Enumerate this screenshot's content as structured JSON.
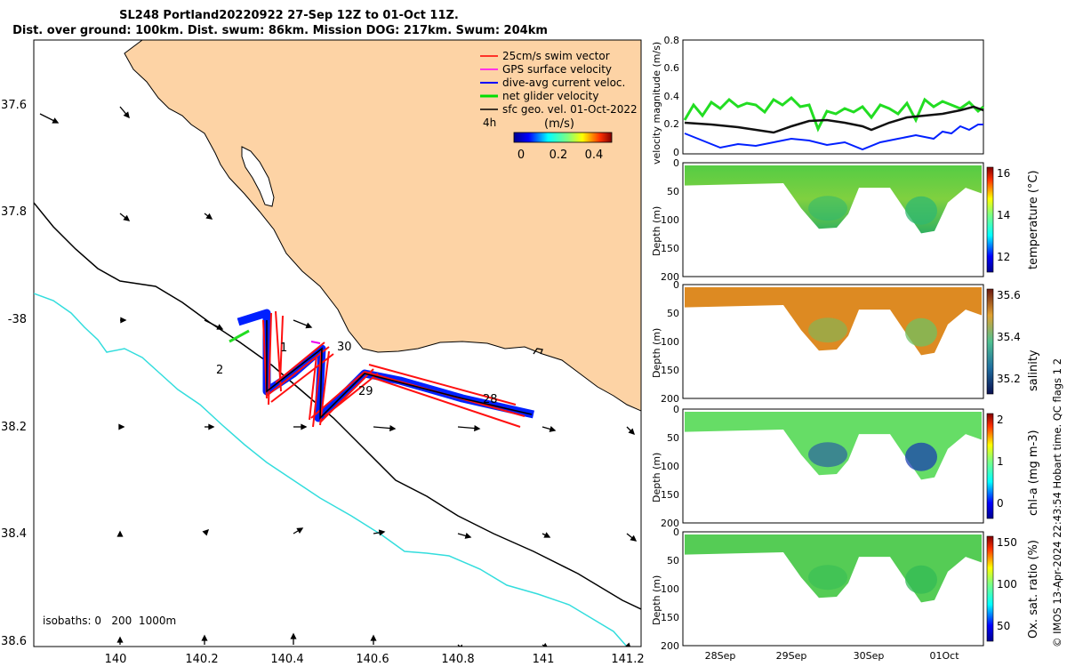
{
  "title": {
    "line1": "SL248 Portland20220922 27-Sep 12Z to 01-Oct 11Z.",
    "line2": "Dist. over ground: 100km. Dist. swum: 86km. Mission DOG: 217km. Swum: 204km"
  },
  "map": {
    "lon_ticks": [
      "140",
      "140.2",
      "140.4",
      "140.6",
      "140.8",
      "141",
      "141.2"
    ],
    "lat_ticks": [
      "37.6",
      "37.8",
      "-38",
      "38.2",
      "38.4",
      "38.6"
    ],
    "legend": [
      {
        "label": "25cm/s swim vector",
        "color": "#ff0000"
      },
      {
        "label": "GPS surface velocity",
        "color": "#ff00ff"
      },
      {
        "label": "dive-avg current veloc.",
        "color": "#0000ff"
      },
      {
        "label": "net glider velocity",
        "color": "#00dd00"
      },
      {
        "label": "sfc geo. vel. 01-Oct-2022",
        "color": "#000000"
      }
    ],
    "scale_label": "4h",
    "colorbar_unit": "(m/s)",
    "colorbar_ticks": [
      "0",
      "0.2",
      "0.4"
    ],
    "track_labels": [
      "30",
      "29",
      "28",
      "2",
      "1"
    ],
    "isobaths_label": "isobaths: 0   200  1000m",
    "land_color": "#fdd3a5",
    "coast_color": "#000000",
    "isobath_1000_color": "#33dddd"
  },
  "panels": {
    "velocity": {
      "ylabel": "velocity magnitude (m/s)",
      "yticks": [
        "0",
        "0.2",
        "0.4",
        "0.6",
        "0.8"
      ]
    },
    "temperature": {
      "ylabel": "Depth (m)",
      "cblabel": "temperature (°C)",
      "cbticks": [
        "12",
        "14",
        "16"
      ]
    },
    "salinity": {
      "ylabel": "Depth (m)",
      "cblabel": "salinity",
      "cbticks": [
        "35.2",
        "35.4",
        "35.6"
      ]
    },
    "chla": {
      "ylabel": "Depth (m)",
      "cblabel": "chl-a (mg m-3)",
      "cbticks": [
        "0",
        "1",
        "2"
      ]
    },
    "oxygen": {
      "ylabel": "Depth (m)",
      "cblabel": "Ox. sat. ratio (%)",
      "cbticks": [
        "50",
        "100",
        "150"
      ]
    },
    "depth_ticks": [
      "0",
      "50",
      "100",
      "150",
      "200"
    ],
    "time_ticks": [
      "28Sep",
      "29Sep",
      "30Sep",
      "01Oct"
    ]
  },
  "side_text": "© IMOS 13-Apr-2024 22:43:54 Hobart time. QC flags 1  2"
}
